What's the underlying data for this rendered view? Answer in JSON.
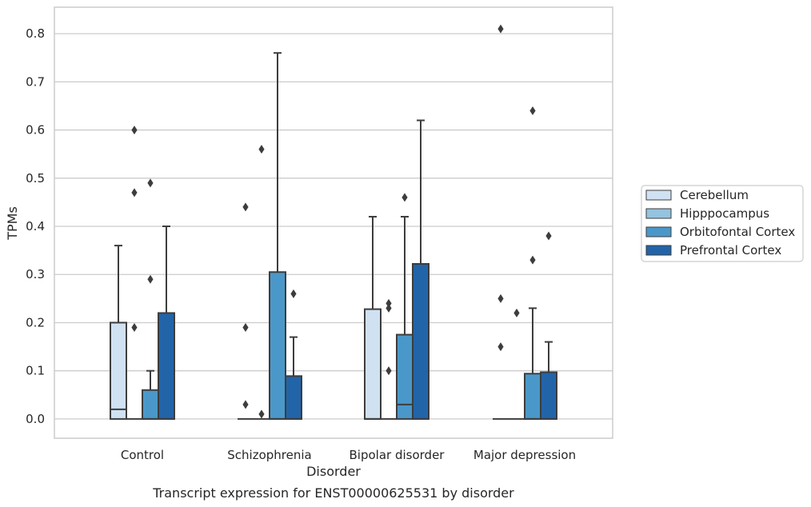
{
  "caption": "Transcript expression for ENST00000625531 by disorder",
  "chart_data": {
    "type": "box",
    "xlabel": "Disorder",
    "ylabel": "TPMs",
    "ylim": [
      -0.04,
      0.855
    ],
    "yticks": [
      "0.0",
      "0.1",
      "0.2",
      "0.3",
      "0.4",
      "0.5",
      "0.6",
      "0.7",
      "0.8"
    ],
    "grid": "horizontal",
    "legend_position": "right",
    "categories": [
      "Control",
      "Schizophrenia",
      "Bipolar disorder",
      "Major depression"
    ],
    "series": [
      {
        "name": "Cerebellum",
        "color": "#d0e1f2",
        "boxes": [
          {
            "q1": 0.0,
            "median": 0.02,
            "q3": 0.2,
            "whisker_low": 0.0,
            "whisker_high": 0.36,
            "outliers": []
          },
          {
            "q1": 0.0,
            "median": 0.0,
            "q3": 0.0,
            "whisker_low": 0.0,
            "whisker_high": 0.0,
            "outliers": [
              0.44,
              0.19,
              0.03
            ]
          },
          {
            "q1": 0.0,
            "median": 0.0,
            "q3": 0.228,
            "whisker_low": 0.0,
            "whisker_high": 0.42,
            "outliers": []
          },
          {
            "q1": 0.0,
            "median": 0.0,
            "q3": 0.0,
            "whisker_low": 0.0,
            "whisker_high": 0.0,
            "outliers": [
              0.81,
              0.25,
              0.15
            ]
          }
        ]
      },
      {
        "name": "Hipppocampus",
        "color": "#94c4df",
        "boxes": [
          {
            "q1": 0.0,
            "median": 0.0,
            "q3": 0.0,
            "whisker_low": 0.0,
            "whisker_high": 0.0,
            "outliers": [
              0.6,
              0.47,
              0.19
            ]
          },
          {
            "q1": 0.0,
            "median": 0.0,
            "q3": 0.0,
            "whisker_low": 0.0,
            "whisker_high": 0.0,
            "outliers": [
              0.56,
              0.01
            ]
          },
          {
            "q1": 0.0,
            "median": 0.0,
            "q3": 0.0,
            "whisker_low": 0.0,
            "whisker_high": 0.0,
            "outliers": [
              0.24,
              0.23,
              0.1
            ]
          },
          {
            "q1": 0.0,
            "median": 0.0,
            "q3": 0.0,
            "whisker_low": 0.0,
            "whisker_high": 0.0,
            "outliers": [
              0.22
            ]
          }
        ]
      },
      {
        "name": "Orbitofontal Cortex",
        "color": "#4a98c9",
        "boxes": [
          {
            "q1": 0.0,
            "median": 0.0,
            "q3": 0.06,
            "whisker_low": 0.0,
            "whisker_high": 0.1,
            "outliers": [
              0.49,
              0.29
            ]
          },
          {
            "q1": 0.0,
            "median": 0.0,
            "q3": 0.305,
            "whisker_low": 0.0,
            "whisker_high": 0.76,
            "outliers": []
          },
          {
            "q1": 0.0,
            "median": 0.03,
            "q3": 0.175,
            "whisker_low": 0.0,
            "whisker_high": 0.42,
            "outliers": [
              0.46
            ]
          },
          {
            "q1": 0.0,
            "median": 0.0,
            "q3": 0.094,
            "whisker_low": 0.0,
            "whisker_high": 0.23,
            "outliers": [
              0.64,
              0.33
            ]
          }
        ]
      },
      {
        "name": "Prefrontal Cortex",
        "color": "#2264a8",
        "boxes": [
          {
            "q1": 0.0,
            "median": 0.0,
            "q3": 0.22,
            "whisker_low": 0.0,
            "whisker_high": 0.4,
            "outliers": []
          },
          {
            "q1": 0.0,
            "median": 0.0,
            "q3": 0.089,
            "whisker_low": 0.0,
            "whisker_high": 0.17,
            "outliers": [
              0.26
            ]
          },
          {
            "q1": 0.0,
            "median": 0.0,
            "q3": 0.322,
            "whisker_low": 0.0,
            "whisker_high": 0.62,
            "outliers": []
          },
          {
            "q1": 0.0,
            "median": 0.0,
            "q3": 0.097,
            "whisker_low": 0.0,
            "whisker_high": 0.16,
            "outliers": [
              0.38
            ]
          }
        ]
      }
    ]
  }
}
